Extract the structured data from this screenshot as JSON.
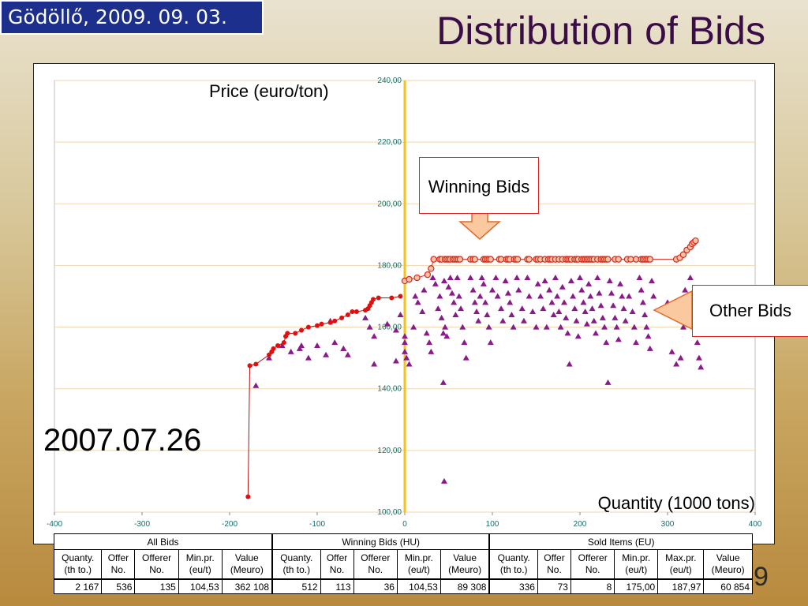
{
  "header": {
    "date_badge": "Gödöllő, 2009. 09. 03.",
    "title": "Distribution of Bids"
  },
  "chart_labels": {
    "y_axis": "Price (euro/ton)",
    "x_axis": "Quantity (1000 tons)",
    "date_stamp": "2007.07.26",
    "winning_callout": "Winning Bids",
    "other_callout": "Other Bids"
  },
  "colors": {
    "winning_stroke": "#d62a1a",
    "winning_fill": "#f7c1a6",
    "cumulative": "#e01010",
    "other_bids": "#8a1a8a",
    "zero_line": "#f6c21a",
    "grid": "#f1d7ad",
    "callout_arrow_fill": "#fbc9a0",
    "callout_arrow_stroke": "#e16a2a"
  },
  "chart_data": {
    "type": "scatter",
    "title": "Distribution of Bids",
    "xlabel": "Quantity (1000 tons)",
    "ylabel": "Price (euro/ton)",
    "xlim": [
      -400,
      400
    ],
    "ylim": [
      100,
      240
    ],
    "x_ticks": [
      "-400",
      "-300",
      "-200",
      "-100",
      "0",
      "100",
      "200",
      "300",
      "400"
    ],
    "y_ticks": [
      "100,00",
      "120,00",
      "140,00",
      "160,00",
      "180,00",
      "200,00",
      "220,00",
      "240,00"
    ],
    "grid": true,
    "series": [
      {
        "name": "cumulative_red",
        "style": "red-dot-line",
        "points": [
          [
            -179,
            105
          ],
          [
            -177,
            147.5
          ],
          [
            -170,
            148
          ],
          [
            -155,
            151
          ],
          [
            -152,
            152
          ],
          [
            -150,
            153
          ],
          [
            -145,
            154
          ],
          [
            -138,
            155
          ],
          [
            -136,
            157
          ],
          [
            -134,
            158
          ],
          [
            -125,
            158
          ],
          [
            -118,
            159
          ],
          [
            -110,
            160
          ],
          [
            -100,
            160.5
          ],
          [
            -95,
            161
          ],
          [
            -85,
            161.5
          ],
          [
            -80,
            162
          ],
          [
            -72,
            163
          ],
          [
            -65,
            164
          ],
          [
            -60,
            165
          ],
          [
            -55,
            165
          ],
          [
            -45,
            165.5
          ],
          [
            -42,
            166
          ],
          [
            -40,
            167
          ],
          [
            -38,
            168
          ],
          [
            -36,
            169
          ],
          [
            -30,
            169.5
          ],
          [
            -15,
            169.5
          ],
          [
            -5,
            170
          ]
        ]
      },
      {
        "name": "Winning Bids",
        "style": "open-circle-line",
        "points": [
          [
            0,
            175
          ],
          [
            5,
            175.5
          ],
          [
            14,
            176
          ],
          [
            26,
            177
          ],
          [
            30,
            179
          ],
          [
            33,
            182
          ],
          [
            40,
            182
          ],
          [
            42,
            182
          ],
          [
            46,
            182
          ],
          [
            48,
            182
          ],
          [
            50,
            182
          ],
          [
            52,
            182
          ],
          [
            55,
            182
          ],
          [
            57,
            182
          ],
          [
            59,
            182
          ],
          [
            61,
            182
          ],
          [
            63,
            182
          ],
          [
            75,
            182
          ],
          [
            78,
            182
          ],
          [
            80,
            182
          ],
          [
            90,
            182
          ],
          [
            92,
            182
          ],
          [
            94,
            182
          ],
          [
            96,
            182
          ],
          [
            98,
            182
          ],
          [
            108,
            182
          ],
          [
            110,
            182
          ],
          [
            116,
            182
          ],
          [
            118,
            182
          ],
          [
            120,
            182
          ],
          [
            125,
            182
          ],
          [
            127,
            182
          ],
          [
            129,
            182
          ],
          [
            140,
            182
          ],
          [
            142,
            182
          ],
          [
            150,
            182
          ],
          [
            152,
            182
          ],
          [
            155,
            182
          ],
          [
            160,
            182
          ],
          [
            164,
            182
          ],
          [
            166,
            182
          ],
          [
            168,
            182
          ],
          [
            172,
            182
          ],
          [
            176,
            182
          ],
          [
            180,
            182
          ],
          [
            184,
            182
          ],
          [
            186,
            182
          ],
          [
            188,
            182
          ],
          [
            190,
            182
          ],
          [
            194,
            182
          ],
          [
            196,
            182
          ],
          [
            198,
            182
          ],
          [
            202,
            182
          ],
          [
            204,
            182
          ],
          [
            206,
            182
          ],
          [
            208,
            182
          ],
          [
            210,
            182
          ],
          [
            212,
            182
          ],
          [
            214,
            182
          ],
          [
            216,
            182
          ],
          [
            220,
            182
          ],
          [
            224,
            182
          ],
          [
            226,
            182
          ],
          [
            228,
            182
          ],
          [
            230,
            182
          ],
          [
            232,
            182
          ],
          [
            240,
            182
          ],
          [
            244,
            182
          ],
          [
            254,
            182
          ],
          [
            258,
            182
          ],
          [
            264,
            182
          ],
          [
            270,
            182
          ],
          [
            272,
            182
          ],
          [
            274,
            182
          ],
          [
            276,
            182
          ],
          [
            278,
            182
          ],
          [
            280,
            182
          ],
          [
            310,
            182
          ],
          [
            314,
            182.5
          ],
          [
            318,
            183.5
          ],
          [
            322,
            185
          ],
          [
            326,
            186
          ],
          [
            328,
            187
          ],
          [
            330,
            187.5
          ],
          [
            332,
            188
          ]
        ]
      },
      {
        "name": "Other Bids",
        "style": "triangle",
        "points": [
          [
            -170,
            141
          ],
          [
            -155,
            150
          ],
          [
            -140,
            154
          ],
          [
            -130,
            152
          ],
          [
            -120,
            153
          ],
          [
            -118,
            154
          ],
          [
            -110,
            150
          ],
          [
            -100,
            154
          ],
          [
            -90,
            151
          ],
          [
            -85,
            162
          ],
          [
            -80,
            155
          ],
          [
            -70,
            153
          ],
          [
            -65,
            151
          ],
          [
            -45,
            163
          ],
          [
            -40,
            160
          ],
          [
            -35,
            148
          ],
          [
            -20,
            161
          ],
          [
            -10,
            159
          ],
          [
            -5,
            164
          ],
          [
            0,
            157
          ],
          [
            0,
            155
          ],
          [
            0,
            152
          ],
          [
            2,
            150
          ],
          [
            5,
            148
          ],
          [
            10,
            160
          ],
          [
            12,
            170
          ],
          [
            15,
            168
          ],
          [
            20,
            165
          ],
          [
            22,
            172
          ],
          [
            25,
            158
          ],
          [
            28,
            155
          ],
          [
            30,
            152
          ],
          [
            32,
            176
          ],
          [
            35,
            174
          ],
          [
            38,
            166
          ],
          [
            40,
            170
          ],
          [
            42,
            163
          ],
          [
            44,
            158
          ],
          [
            45,
            175
          ],
          [
            46,
            160
          ],
          [
            48,
            157
          ],
          [
            50,
            173
          ],
          [
            52,
            176
          ],
          [
            54,
            171
          ],
          [
            56,
            168
          ],
          [
            58,
            164
          ],
          [
            60,
            176
          ],
          [
            62,
            170
          ],
          [
            64,
            166
          ],
          [
            66,
            160
          ],
          [
            68,
            155
          ],
          [
            70,
            150
          ],
          [
            75,
            176
          ],
          [
            78,
            172
          ],
          [
            80,
            168
          ],
          [
            82,
            165
          ],
          [
            84,
            162
          ],
          [
            86,
            170
          ],
          [
            88,
            176
          ],
          [
            90,
            174
          ],
          [
            92,
            168
          ],
          [
            94,
            164
          ],
          [
            96,
            160
          ],
          [
            98,
            155
          ],
          [
            100,
            172
          ],
          [
            104,
            176
          ],
          [
            106,
            170
          ],
          [
            110,
            166
          ],
          [
            112,
            162
          ],
          [
            115,
            175
          ],
          [
            118,
            171
          ],
          [
            120,
            168
          ],
          [
            122,
            164
          ],
          [
            124,
            160
          ],
          [
            128,
            176
          ],
          [
            130,
            172
          ],
          [
            134,
            166
          ],
          [
            136,
            162
          ],
          [
            140,
            176
          ],
          [
            142,
            170
          ],
          [
            146,
            165
          ],
          [
            150,
            160
          ],
          [
            152,
            174
          ],
          [
            155,
            170
          ],
          [
            158,
            166
          ],
          [
            160,
            175
          ],
          [
            162,
            160
          ],
          [
            165,
            172
          ],
          [
            168,
            168
          ],
          [
            170,
            164
          ],
          [
            172,
            176
          ],
          [
            174,
            170
          ],
          [
            176,
            165
          ],
          [
            178,
            160
          ],
          [
            180,
            173
          ],
          [
            182,
            168
          ],
          [
            184,
            163
          ],
          [
            186,
            158
          ],
          [
            188,
            148
          ],
          [
            190,
            175
          ],
          [
            192,
            170
          ],
          [
            194,
            166
          ],
          [
            196,
            162
          ],
          [
            198,
            157
          ],
          [
            200,
            176
          ],
          [
            202,
            172
          ],
          [
            204,
            168
          ],
          [
            206,
            165
          ],
          [
            208,
            161
          ],
          [
            210,
            174
          ],
          [
            212,
            170
          ],
          [
            214,
            166
          ],
          [
            216,
            162
          ],
          [
            218,
            158
          ],
          [
            220,
            176
          ],
          [
            222,
            171
          ],
          [
            224,
            167
          ],
          [
            226,
            163
          ],
          [
            228,
            160
          ],
          [
            230,
            155
          ],
          [
            232,
            142
          ],
          [
            234,
            175
          ],
          [
            236,
            171
          ],
          [
            238,
            167
          ],
          [
            240,
            163
          ],
          [
            242,
            160
          ],
          [
            244,
            156
          ],
          [
            246,
            174
          ],
          [
            248,
            170
          ],
          [
            250,
            166
          ],
          [
            252,
            162
          ],
          [
            256,
            170
          ],
          [
            260,
            165
          ],
          [
            262,
            160
          ],
          [
            264,
            155
          ],
          [
            268,
            176
          ],
          [
            270,
            172
          ],
          [
            272,
            168
          ],
          [
            274,
            164
          ],
          [
            276,
            160
          ],
          [
            278,
            157
          ],
          [
            280,
            153
          ],
          [
            282,
            175
          ],
          [
            284,
            170
          ],
          [
            300,
            168
          ],
          [
            305,
            152
          ],
          [
            310,
            148
          ],
          [
            315,
            150
          ],
          [
            318,
            160
          ],
          [
            320,
            172
          ],
          [
            322,
            168
          ],
          [
            324,
            165
          ],
          [
            326,
            176
          ],
          [
            328,
            170
          ],
          [
            330,
            163
          ],
          [
            332,
            158
          ],
          [
            334,
            155
          ],
          [
            336,
            150
          ],
          [
            338,
            147
          ],
          [
            45,
            110
          ],
          [
            44,
            142
          ],
          [
            -70,
            153
          ],
          [
            -35,
            157
          ],
          [
            -10,
            149
          ]
        ]
      }
    ]
  },
  "stats_table": {
    "groups": [
      "All Bids",
      "Winning Bids (HU)",
      "Sold Items (EU)"
    ],
    "headers": [
      [
        "Quanty.",
        "(th to.)"
      ],
      [
        "Offer",
        "No."
      ],
      [
        "Offerer",
        "No."
      ],
      [
        "Min.pr.",
        "(eu/t)"
      ],
      [
        "Value",
        "(Meuro)"
      ],
      [
        "Quanty.",
        "(th to.)"
      ],
      [
        "Offer",
        "No."
      ],
      [
        "Offerer",
        "No."
      ],
      [
        "Min.pr.",
        "(eu/t)"
      ],
      [
        "Value",
        "(Meuro)"
      ],
      [
        "Quanty.",
        "(th to.)"
      ],
      [
        "Offer",
        "No."
      ],
      [
        "Offerer",
        "No."
      ],
      [
        "Min.pr.",
        "(eu/t)"
      ],
      [
        "Max.pr.",
        "(eu/t)"
      ],
      [
        "Value",
        "(Meuro)"
      ]
    ],
    "values": [
      "2 167",
      "536",
      "135",
      "104,53",
      "362 108",
      "512",
      "113",
      "36",
      "104,53",
      "89 308",
      "336",
      "73",
      "8",
      "175,00",
      "187,97",
      "60 854"
    ]
  },
  "page_number_glyph": "9"
}
